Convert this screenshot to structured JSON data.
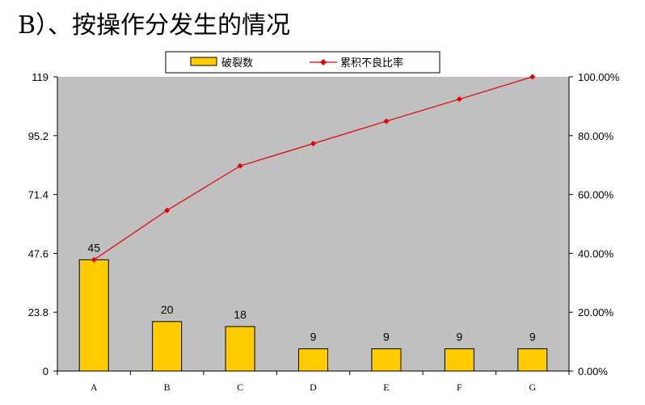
{
  "heading": "B）、按操作分发生的情况",
  "chart_data": {
    "type": "bar+line",
    "categories": [
      "A",
      "B",
      "C",
      "D",
      "E",
      "F",
      "G"
    ],
    "series": [
      {
        "name": "破裂数",
        "type": "bar",
        "axis": "left",
        "color": "#FFCC00",
        "values": [
          45,
          20,
          18,
          9,
          9,
          9,
          9
        ]
      },
      {
        "name": "累积不良比率",
        "type": "line",
        "axis": "right",
        "color": "#E00000",
        "values": [
          0.378,
          0.546,
          0.697,
          0.773,
          0.849,
          0.924,
          1.0
        ]
      }
    ],
    "left_axis": {
      "ylim": [
        0,
        119
      ],
      "ticks": [
        "0",
        "23.8",
        "47.6",
        "71.4",
        "95.2",
        "119"
      ]
    },
    "right_axis": {
      "ylim": [
        0,
        1
      ],
      "ticks": [
        "0.00%",
        "20.00%",
        "40.00%",
        "60.00%",
        "80.00%",
        "100.00%"
      ]
    },
    "data_labels": [
      "45",
      "20",
      "18",
      "9",
      "9",
      "9",
      "9"
    ],
    "plot_background": "#C0C0C0",
    "legend_position": "top",
    "grid": false
  }
}
